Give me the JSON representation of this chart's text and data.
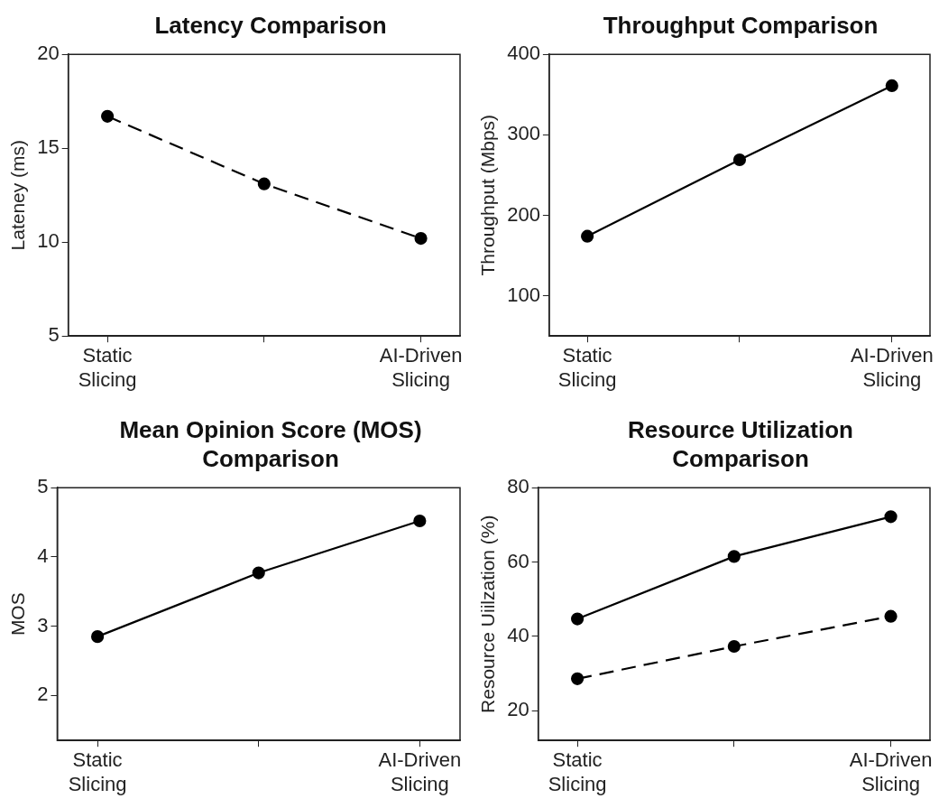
{
  "chart_data": [
    {
      "type": "line",
      "title": "Latency Comparison",
      "ylabel": "Lateney (ms)",
      "categories": [
        "Static Slicing",
        null,
        "AI-Driven Slicing"
      ],
      "marker": "circle",
      "ylim": [
        5,
        20
      ],
      "yticks": [
        5,
        10,
        15,
        20
      ],
      "series": [
        {
          "color": "#000000",
          "line_style": "dashed",
          "values": [
            16.7,
            13.1,
            10.2
          ]
        }
      ]
    },
    {
      "type": "line",
      "title": "Throughput Comparison",
      "ylabel": "Throughput (Mbps)",
      "categories": [
        "Static Slicing",
        null,
        "AI-Driven Slicing"
      ],
      "marker": "circle",
      "ylim": [
        50,
        400
      ],
      "yticks": [
        100,
        200,
        300,
        400
      ],
      "series": [
        {
          "color": "#000000",
          "line_style": "solid",
          "values": [
            174,
            269,
            361
          ]
        }
      ]
    },
    {
      "type": "line",
      "title": "Mean Opinion Score (MOS) Comparison",
      "ylabel": "MOS",
      "categories": [
        "Static Slicing",
        null,
        "AI-Driven Slicing"
      ],
      "marker": "circle",
      "ylim": [
        1.35,
        5
      ],
      "yticks": [
        2,
        3,
        4,
        5
      ],
      "series": [
        {
          "color": "#000000",
          "line_style": "solid",
          "values": [
            2.85,
            3.77,
            4.52
          ]
        }
      ]
    },
    {
      "type": "line",
      "title": "Resource Utilization Comparison",
      "ylabel": "Resource Uiilzation (%)",
      "categories": [
        "Static Slicing",
        null,
        "AI-Driven Slicing"
      ],
      "marker": "circle",
      "ylim": [
        12,
        80
      ],
      "yticks": [
        20,
        40,
        60,
        80
      ],
      "series": [
        {
          "color": "#000000",
          "line_style": "solid",
          "values": [
            44.7,
            61.5,
            72.2
          ]
        },
        {
          "color": "#000000",
          "line_style": "dashed",
          "values": [
            28.6,
            37.3,
            45.4
          ]
        }
      ]
    }
  ]
}
